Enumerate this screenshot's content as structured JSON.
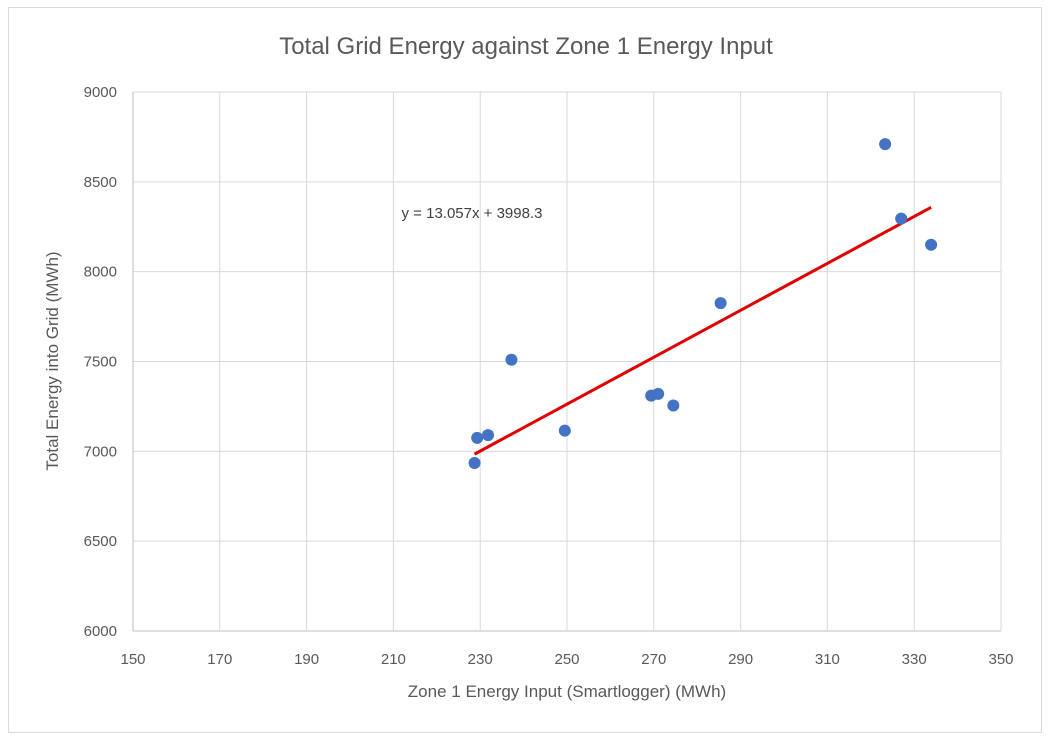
{
  "chart_data": {
    "type": "scatter",
    "title": "Total Grid Energy against Zone 1 Energy Input",
    "xlabel": "Zone 1 Energy Input (Smartlogger) (MWh)",
    "ylabel": "Total Energy into Grid (MWh)",
    "xlim": [
      150,
      350
    ],
    "ylim": [
      6000,
      9000
    ],
    "x_ticks": [
      150,
      170,
      190,
      210,
      230,
      250,
      270,
      290,
      310,
      330,
      350
    ],
    "y_ticks": [
      6000,
      6500,
      7000,
      7500,
      8000,
      8500,
      9000
    ],
    "grid": true,
    "legend": "none",
    "point_color": "#4472c4",
    "trendline_color": "#e00000",
    "points": [
      {
        "x": 228.7,
        "y": 6935
      },
      {
        "x": 229.3,
        "y": 7075
      },
      {
        "x": 231.8,
        "y": 7090
      },
      {
        "x": 237.2,
        "y": 7510
      },
      {
        "x": 249.5,
        "y": 7115
      },
      {
        "x": 269.4,
        "y": 7310
      },
      {
        "x": 271.0,
        "y": 7320
      },
      {
        "x": 274.5,
        "y": 7255
      },
      {
        "x": 285.4,
        "y": 7825
      },
      {
        "x": 323.3,
        "y": 8710
      },
      {
        "x": 327.0,
        "y": 8295
      },
      {
        "x": 333.9,
        "y": 8150
      }
    ],
    "trendline": {
      "slope": 13.057,
      "intercept": 3998.3,
      "x_range": [
        228.7,
        333.9
      ],
      "equation_label": "y = 13.057x + 3998.3"
    }
  }
}
